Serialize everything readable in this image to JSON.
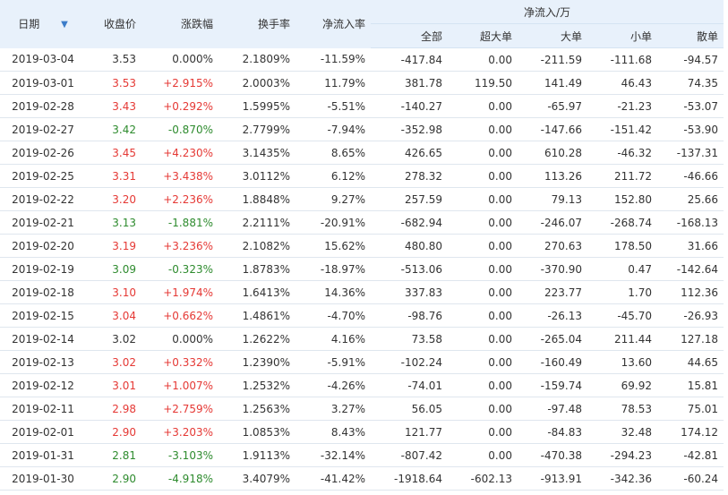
{
  "headers": {
    "date": "日期",
    "close": "收盘价",
    "change": "涨跌幅",
    "turnover": "换手率",
    "net_inflow_rate": "净流入率",
    "net_inflow_group": "净流入/万",
    "total": "全部",
    "super_large": "超大单",
    "large": "大单",
    "small": "小单",
    "retail": "散单"
  },
  "sort_icon": "arrow-down-icon",
  "colors": {
    "up": "#e53935",
    "down": "#2e8b2e",
    "header_bg": "#e8f1fb"
  },
  "rows": [
    {
      "date": "2019-03-04",
      "close": "3.53",
      "change": "0.000%",
      "turnover": "2.1809%",
      "rate": "-11.59%",
      "total": "-417.84",
      "super": "0.00",
      "large": "-211.59",
      "small": "-111.68",
      "retail": "-94.57",
      "dir": "flat"
    },
    {
      "date": "2019-03-01",
      "close": "3.53",
      "change": "+2.915%",
      "turnover": "2.0003%",
      "rate": "11.79%",
      "total": "381.78",
      "super": "119.50",
      "large": "141.49",
      "small": "46.43",
      "retail": "74.35",
      "dir": "up"
    },
    {
      "date": "2019-02-28",
      "close": "3.43",
      "change": "+0.292%",
      "turnover": "1.5995%",
      "rate": "-5.51%",
      "total": "-140.27",
      "super": "0.00",
      "large": "-65.97",
      "small": "-21.23",
      "retail": "-53.07",
      "dir": "up"
    },
    {
      "date": "2019-02-27",
      "close": "3.42",
      "change": "-0.870%",
      "turnover": "2.7799%",
      "rate": "-7.94%",
      "total": "-352.98",
      "super": "0.00",
      "large": "-147.66",
      "small": "-151.42",
      "retail": "-53.90",
      "dir": "down"
    },
    {
      "date": "2019-02-26",
      "close": "3.45",
      "change": "+4.230%",
      "turnover": "3.1435%",
      "rate": "8.65%",
      "total": "426.65",
      "super": "0.00",
      "large": "610.28",
      "small": "-46.32",
      "retail": "-137.31",
      "dir": "up"
    },
    {
      "date": "2019-02-25",
      "close": "3.31",
      "change": "+3.438%",
      "turnover": "3.0112%",
      "rate": "6.12%",
      "total": "278.32",
      "super": "0.00",
      "large": "113.26",
      "small": "211.72",
      "retail": "-46.66",
      "dir": "up"
    },
    {
      "date": "2019-02-22",
      "close": "3.20",
      "change": "+2.236%",
      "turnover": "1.8848%",
      "rate": "9.27%",
      "total": "257.59",
      "super": "0.00",
      "large": "79.13",
      "small": "152.80",
      "retail": "25.66",
      "dir": "up"
    },
    {
      "date": "2019-02-21",
      "close": "3.13",
      "change": "-1.881%",
      "turnover": "2.2111%",
      "rate": "-20.91%",
      "total": "-682.94",
      "super": "0.00",
      "large": "-246.07",
      "small": "-268.74",
      "retail": "-168.13",
      "dir": "down"
    },
    {
      "date": "2019-02-20",
      "close": "3.19",
      "change": "+3.236%",
      "turnover": "2.1082%",
      "rate": "15.62%",
      "total": "480.80",
      "super": "0.00",
      "large": "270.63",
      "small": "178.50",
      "retail": "31.66",
      "dir": "up"
    },
    {
      "date": "2019-02-19",
      "close": "3.09",
      "change": "-0.323%",
      "turnover": "1.8783%",
      "rate": "-18.97%",
      "total": "-513.06",
      "super": "0.00",
      "large": "-370.90",
      "small": "0.47",
      "retail": "-142.64",
      "dir": "down"
    },
    {
      "date": "2019-02-18",
      "close": "3.10",
      "change": "+1.974%",
      "turnover": "1.6413%",
      "rate": "14.36%",
      "total": "337.83",
      "super": "0.00",
      "large": "223.77",
      "small": "1.70",
      "retail": "112.36",
      "dir": "up"
    },
    {
      "date": "2019-02-15",
      "close": "3.04",
      "change": "+0.662%",
      "turnover": "1.4861%",
      "rate": "-4.70%",
      "total": "-98.76",
      "super": "0.00",
      "large": "-26.13",
      "small": "-45.70",
      "retail": "-26.93",
      "dir": "up"
    },
    {
      "date": "2019-02-14",
      "close": "3.02",
      "change": "0.000%",
      "turnover": "1.2622%",
      "rate": "4.16%",
      "total": "73.58",
      "super": "0.00",
      "large": "-265.04",
      "small": "211.44",
      "retail": "127.18",
      "dir": "flat"
    },
    {
      "date": "2019-02-13",
      "close": "3.02",
      "change": "+0.332%",
      "turnover": "1.2390%",
      "rate": "-5.91%",
      "total": "-102.24",
      "super": "0.00",
      "large": "-160.49",
      "small": "13.60",
      "retail": "44.65",
      "dir": "up"
    },
    {
      "date": "2019-02-12",
      "close": "3.01",
      "change": "+1.007%",
      "turnover": "1.2532%",
      "rate": "-4.26%",
      "total": "-74.01",
      "super": "0.00",
      "large": "-159.74",
      "small": "69.92",
      "retail": "15.81",
      "dir": "up"
    },
    {
      "date": "2019-02-11",
      "close": "2.98",
      "change": "+2.759%",
      "turnover": "1.2563%",
      "rate": "3.27%",
      "total": "56.05",
      "super": "0.00",
      "large": "-97.48",
      "small": "78.53",
      "retail": "75.01",
      "dir": "up"
    },
    {
      "date": "2019-02-01",
      "close": "2.90",
      "change": "+3.203%",
      "turnover": "1.0853%",
      "rate": "8.43%",
      "total": "121.77",
      "super": "0.00",
      "large": "-84.83",
      "small": "32.48",
      "retail": "174.12",
      "dir": "up"
    },
    {
      "date": "2019-01-31",
      "close": "2.81",
      "change": "-3.103%",
      "turnover": "1.9113%",
      "rate": "-32.14%",
      "total": "-807.42",
      "super": "0.00",
      "large": "-470.38",
      "small": "-294.23",
      "retail": "-42.81",
      "dir": "down"
    },
    {
      "date": "2019-01-30",
      "close": "2.90",
      "change": "-4.918%",
      "turnover": "3.4079%",
      "rate": "-41.42%",
      "total": "-1918.64",
      "super": "-602.13",
      "large": "-913.91",
      "small": "-342.36",
      "retail": "-60.24",
      "dir": "down"
    }
  ]
}
